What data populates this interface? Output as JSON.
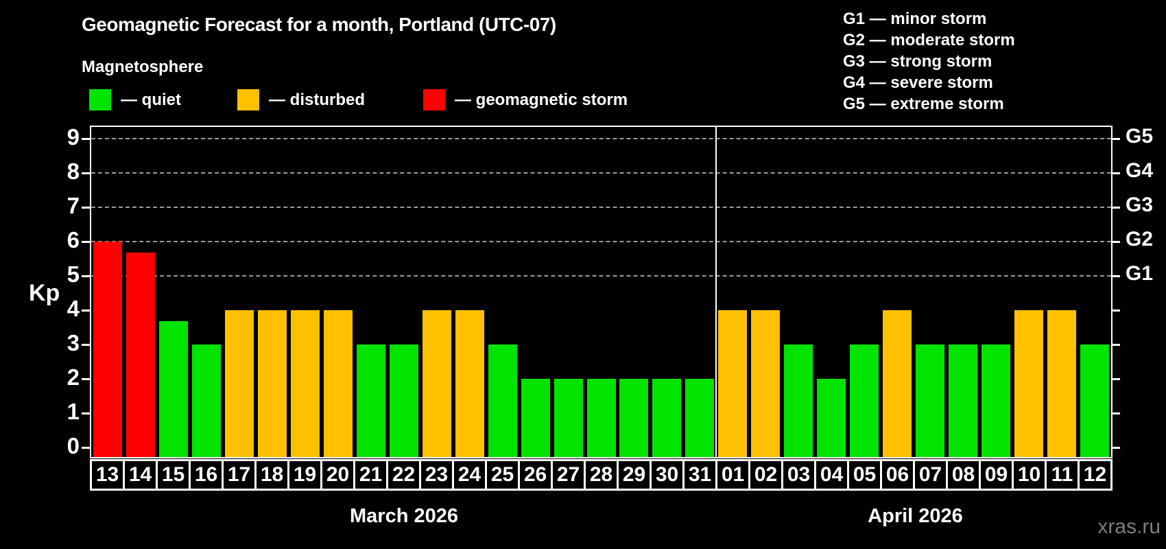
{
  "header": {
    "title": "Geomagnetic Forecast for a month, Portland (UTC-07)",
    "subtitle": "Magnetosphere"
  },
  "legend": {
    "items": [
      {
        "key": "quiet",
        "label": "— quiet",
        "color": "#00e400"
      },
      {
        "key": "disturbed",
        "label": "— disturbed",
        "color": "#ffc000"
      },
      {
        "key": "storm",
        "label": "— geomagnetic storm",
        "color": "#ff0000"
      }
    ]
  },
  "g_scale": [
    "G1 — minor storm",
    "G2 — moderate storm",
    "G3 — strong storm",
    "G4 — severe storm",
    "G5 — extreme storm"
  ],
  "axis": {
    "ylabel": "Kp"
  },
  "watermark": "xras.ru",
  "chart_data": {
    "type": "bar",
    "title": "Geomagnetic Forecast for a month, Portland (UTC-07)",
    "ylabel": "Kp",
    "ylim": [
      0,
      9.35
    ],
    "y_ticks": [
      0,
      1,
      2,
      3,
      4,
      5,
      6,
      7,
      8,
      9
    ],
    "gridlines": {
      "style": "dashed",
      "color": "#9c9c9c",
      "at_kp": [
        5,
        6,
        7,
        8,
        9
      ]
    },
    "right_axis": [
      {
        "kp": 5,
        "label": "G1"
      },
      {
        "kp": 6,
        "label": "G2"
      },
      {
        "kp": 7,
        "label": "G3"
      },
      {
        "kp": 8,
        "label": "G4"
      },
      {
        "kp": 9,
        "label": "G5"
      }
    ],
    "categories": [
      "13",
      "14",
      "15",
      "16",
      "17",
      "18",
      "19",
      "20",
      "21",
      "22",
      "23",
      "24",
      "25",
      "26",
      "27",
      "28",
      "29",
      "30",
      "31",
      "01",
      "02",
      "03",
      "04",
      "05",
      "06",
      "07",
      "08",
      "09",
      "10",
      "11",
      "12"
    ],
    "series": [
      {
        "name": "Kp forecast",
        "values": [
          6,
          5.67,
          3.67,
          3,
          4,
          4,
          4,
          4,
          3,
          3,
          4,
          4,
          3,
          2,
          2,
          2,
          2,
          2,
          2,
          4,
          4,
          3,
          2,
          3,
          4,
          3,
          3,
          3,
          4,
          4,
          3
        ]
      }
    ],
    "statuses": [
      "storm",
      "storm",
      "quiet",
      "quiet",
      "disturbed",
      "disturbed",
      "disturbed",
      "disturbed",
      "quiet",
      "quiet",
      "disturbed",
      "disturbed",
      "quiet",
      "quiet",
      "quiet",
      "quiet",
      "quiet",
      "quiet",
      "quiet",
      "disturbed",
      "disturbed",
      "quiet",
      "quiet",
      "quiet",
      "disturbed",
      "quiet",
      "quiet",
      "quiet",
      "disturbed",
      "disturbed",
      "quiet"
    ],
    "status_colors": {
      "quiet": "#00e400",
      "disturbed": "#ffc000",
      "storm": "#ff0000"
    },
    "months": [
      {
        "label": "March 2026",
        "days": 19
      },
      {
        "label": "April 2026",
        "days": 12
      }
    ],
    "legend_position": "top-left",
    "grid": "dashed horizontal at G-storm levels only"
  }
}
